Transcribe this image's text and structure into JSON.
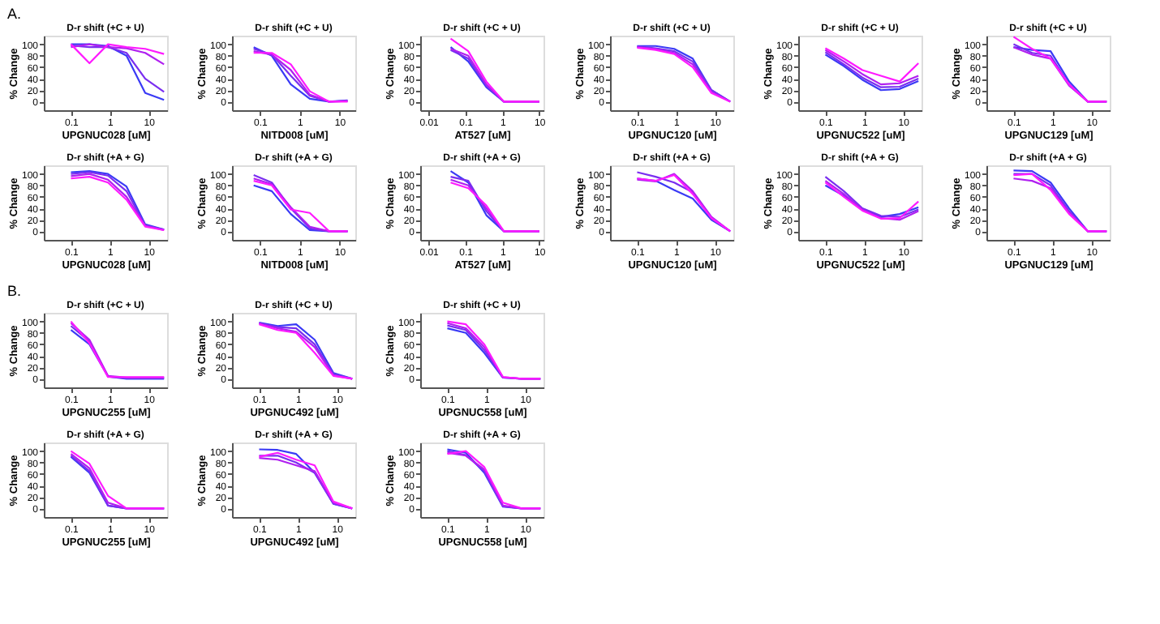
{
  "chart_data": [
    {
      "type": "line",
      "title": "D-r shift (+C + U)",
      "xlabel": "UPGNUC028 [uM]",
      "ylabel": "% Change",
      "log": "x",
      "x": [
        0.1,
        0.3,
        0.9,
        2.7,
        8.2,
        25
      ],
      "xlim": [
        0.02,
        30
      ],
      "xticks": [
        0.1,
        1,
        10
      ],
      "ylim": [
        -15,
        115
      ],
      "yticks": [
        0,
        20,
        40,
        60,
        80,
        100
      ],
      "annotations": [
        "A."
      ],
      "series": [
        {
          "color": "#3a3af5",
          "values": [
            100,
            100,
            97,
            80,
            15,
            3
          ]
        },
        {
          "color": "#7a2ef0",
          "values": [
            98,
            95,
            95,
            85,
            40,
            17
          ]
        },
        {
          "color": "#b020f0",
          "values": [
            95,
            100,
            95,
            93,
            85,
            65
          ]
        },
        {
          "color": "#ff1aff",
          "values": [
            100,
            67,
            100,
            95,
            92,
            83
          ]
        }
      ]
    },
    {
      "type": "line",
      "title": "D-r shift (+C + U)",
      "xlabel": "NITD008 [uM]",
      "ylabel": "% Change",
      "log": "x",
      "x": [
        0.07,
        0.2,
        0.6,
        1.8,
        5.5,
        16
      ],
      "xlim": [
        0.02,
        25
      ],
      "xticks": [
        0.1,
        1,
        10
      ],
      "ylim": [
        -15,
        115
      ],
      "yticks": [
        0,
        20,
        40,
        60,
        80,
        100
      ],
      "series": [
        {
          "color": "#3a3af5",
          "values": [
            95,
            80,
            30,
            5,
            0,
            2
          ]
        },
        {
          "color": "#7a2ef0",
          "values": [
            92,
            82,
            45,
            10,
            0,
            1
          ]
        },
        {
          "color": "#b020f0",
          "values": [
            88,
            82,
            55,
            12,
            0,
            1
          ]
        },
        {
          "color": "#ff1aff",
          "values": [
            85,
            85,
            65,
            18,
            0,
            0
          ]
        }
      ]
    },
    {
      "type": "line",
      "title": "D-r shift (+C + U)",
      "xlabel": "AT527 [uM]",
      "ylabel": "% Change",
      "log": "x",
      "x": [
        0.04,
        0.12,
        0.37,
        1.1,
        3.3,
        10
      ],
      "xlim": [
        0.006,
        13
      ],
      "xticks": [
        0.01,
        0.1,
        1,
        10
      ],
      "ylim": [
        -15,
        115
      ],
      "yticks": [
        0,
        20,
        40,
        60,
        80,
        100
      ],
      "series": [
        {
          "color": "#3a3af5",
          "values": [
            95,
            70,
            25,
            0,
            0,
            0
          ]
        },
        {
          "color": "#7a2ef0",
          "values": [
            90,
            75,
            28,
            0,
            0,
            0
          ]
        },
        {
          "color": "#b020f0",
          "values": [
            92,
            80,
            30,
            0,
            0,
            0
          ]
        },
        {
          "color": "#ff1aff",
          "values": [
            110,
            88,
            35,
            0,
            0,
            0
          ]
        }
      ]
    },
    {
      "type": "line",
      "title": "D-r shift (+C + U)",
      "xlabel": "UPGNUC120 [uM]",
      "ylabel": "% Change",
      "log": "x",
      "x": [
        0.1,
        0.3,
        0.9,
        2.7,
        8.2,
        25
      ],
      "xlim": [
        0.02,
        30
      ],
      "xticks": [
        0.1,
        1,
        10
      ],
      "ylim": [
        -15,
        115
      ],
      "yticks": [
        0,
        20,
        40,
        60,
        80,
        100
      ],
      "series": [
        {
          "color": "#3a3af5",
          "values": [
            97,
            97,
            92,
            75,
            20,
            0
          ]
        },
        {
          "color": "#7a2ef0",
          "values": [
            96,
            93,
            88,
            70,
            20,
            0
          ]
        },
        {
          "color": "#b020f0",
          "values": [
            95,
            92,
            85,
            65,
            17,
            0
          ]
        },
        {
          "color": "#ff1aff",
          "values": [
            94,
            90,
            83,
            60,
            15,
            0
          ]
        }
      ]
    },
    {
      "type": "line",
      "title": "D-r shift (+C + U)",
      "xlabel": "UPGNUC522 [uM]",
      "ylabel": "% Change",
      "log": "x",
      "x": [
        0.1,
        0.3,
        0.9,
        2.7,
        8.2,
        25
      ],
      "xlim": [
        0.02,
        30
      ],
      "xticks": [
        0.1,
        1,
        10
      ],
      "ylim": [
        -15,
        115
      ],
      "yticks": [
        0,
        20,
        40,
        60,
        80,
        100
      ],
      "series": [
        {
          "color": "#3a3af5",
          "values": [
            82,
            62,
            38,
            20,
            22,
            36
          ]
        },
        {
          "color": "#7a2ef0",
          "values": [
            86,
            65,
            42,
            25,
            26,
            40
          ]
        },
        {
          "color": "#b020f0",
          "values": [
            90,
            70,
            48,
            30,
            32,
            45
          ]
        },
        {
          "color": "#ff1aff",
          "values": [
            93,
            75,
            55,
            45,
            35,
            67
          ]
        }
      ]
    },
    {
      "type": "line",
      "title": "D-r shift (+C + U)",
      "xlabel": "UPGNUC129 [uM]",
      "ylabel": "% Change",
      "log": "x",
      "x": [
        0.1,
        0.3,
        0.9,
        2.7,
        8.2,
        25
      ],
      "xlim": [
        0.02,
        30
      ],
      "xticks": [
        0.1,
        1,
        10
      ],
      "ylim": [
        -15,
        115
      ],
      "yticks": [
        0,
        20,
        40,
        60,
        80,
        100
      ],
      "series": [
        {
          "color": "#3a3af5",
          "values": [
            95,
            90,
            88,
            35,
            0,
            0
          ]
        },
        {
          "color": "#7a2ef0",
          "values": [
            100,
            85,
            80,
            30,
            0,
            0
          ]
        },
        {
          "color": "#b020f0",
          "values": [
            95,
            82,
            75,
            28,
            0,
            0
          ]
        },
        {
          "color": "#ff1aff",
          "values": [
            113,
            92,
            75,
            30,
            0,
            0
          ]
        }
      ]
    },
    {
      "type": "line",
      "title": "D-r shift (+A + G)",
      "xlabel": "UPGNUC028 [uM]",
      "ylabel": "% Change",
      "log": "x",
      "x": [
        0.1,
        0.3,
        0.9,
        2.7,
        8.2,
        25
      ],
      "xlim": [
        0.02,
        30
      ],
      "xticks": [
        0.1,
        1,
        10
      ],
      "ylim": [
        -15,
        115
      ],
      "yticks": [
        0,
        20,
        40,
        60,
        80,
        100
      ],
      "series": [
        {
          "color": "#3a3af5",
          "values": [
            103,
            105,
            100,
            78,
            12,
            3
          ]
        },
        {
          "color": "#7a2ef0",
          "values": [
            100,
            103,
            97,
            70,
            10,
            3
          ]
        },
        {
          "color": "#b020f0",
          "values": [
            96,
            100,
            90,
            60,
            10,
            2
          ]
        },
        {
          "color": "#ff1aff",
          "values": [
            92,
            95,
            85,
            55,
            8,
            2
          ]
        }
      ]
    },
    {
      "type": "line",
      "title": "D-r shift (+A + G)",
      "xlabel": "NITD008 [uM]",
      "ylabel": "% Change",
      "log": "x",
      "x": [
        0.07,
        0.2,
        0.6,
        1.8,
        5.5,
        16
      ],
      "xlim": [
        0.02,
        25
      ],
      "xticks": [
        0.1,
        1,
        10
      ],
      "ylim": [
        -15,
        115
      ],
      "yticks": [
        0,
        20,
        40,
        60,
        80,
        100
      ],
      "series": [
        {
          "color": "#3a3af5",
          "values": [
            80,
            70,
            30,
            2,
            0,
            0
          ]
        },
        {
          "color": "#7a2ef0",
          "values": [
            98,
            85,
            40,
            5,
            0,
            0
          ]
        },
        {
          "color": "#b020f0",
          "values": [
            92,
            82,
            42,
            8,
            0,
            0
          ]
        },
        {
          "color": "#ff1aff",
          "values": [
            88,
            80,
            38,
            32,
            0,
            0
          ]
        }
      ]
    },
    {
      "type": "line",
      "title": "D-r shift (+A + G)",
      "xlabel": "AT527 [uM]",
      "ylabel": "% Change",
      "log": "x",
      "x": [
        0.04,
        0.12,
        0.37,
        1.1,
        3.3,
        10
      ],
      "xlim": [
        0.006,
        13
      ],
      "xticks": [
        0.01,
        0.1,
        1,
        10
      ],
      "ylim": [
        -15,
        115
      ],
      "yticks": [
        0,
        20,
        40,
        60,
        80,
        100
      ],
      "series": [
        {
          "color": "#3a3af5",
          "values": [
            105,
            85,
            28,
            0,
            0,
            0
          ]
        },
        {
          "color": "#7a2ef0",
          "values": [
            95,
            88,
            35,
            0,
            0,
            0
          ]
        },
        {
          "color": "#b020f0",
          "values": [
            90,
            80,
            40,
            0,
            0,
            0
          ]
        },
        {
          "color": "#ff1aff",
          "values": [
            85,
            75,
            45,
            0,
            0,
            0
          ]
        }
      ]
    },
    {
      "type": "line",
      "title": "D-r shift (+A + G)",
      "xlabel": "UPGNUC120 [uM]",
      "ylabel": "% Change",
      "log": "x",
      "x": [
        0.1,
        0.3,
        0.9,
        2.7,
        8.2,
        25
      ],
      "xlim": [
        0.02,
        30
      ],
      "xticks": [
        0.1,
        1,
        10
      ],
      "ylim": [
        -15,
        115
      ],
      "yticks": [
        0,
        20,
        40,
        60,
        80,
        100
      ],
      "series": [
        {
          "color": "#3a3af5",
          "values": [
            92,
            88,
            72,
            57,
            20,
            0
          ]
        },
        {
          "color": "#7a2ef0",
          "values": [
            103,
            95,
            85,
            68,
            22,
            0
          ]
        },
        {
          "color": "#b020f0",
          "values": [
            90,
            87,
            100,
            70,
            25,
            0
          ]
        },
        {
          "color": "#ff1aff",
          "values": [
            92,
            88,
            98,
            65,
            23,
            0
          ]
        }
      ]
    },
    {
      "type": "line",
      "title": "D-r shift (+A + G)",
      "xlabel": "UPGNUC522 [uM]",
      "ylabel": "% Change",
      "log": "x",
      "x": [
        0.1,
        0.3,
        0.9,
        2.7,
        8.2,
        25
      ],
      "xlim": [
        0.02,
        30
      ],
      "xticks": [
        0.1,
        1,
        10
      ],
      "ylim": [
        -15,
        115
      ],
      "yticks": [
        0,
        20,
        40,
        60,
        80,
        100
      ],
      "series": [
        {
          "color": "#3a3af5",
          "values": [
            80,
            62,
            38,
            25,
            30,
            42
          ]
        },
        {
          "color": "#7a2ef0",
          "values": [
            95,
            70,
            40,
            27,
            25,
            38
          ]
        },
        {
          "color": "#b020f0",
          "values": [
            88,
            65,
            38,
            23,
            20,
            35
          ]
        },
        {
          "color": "#ff1aff",
          "values": [
            85,
            60,
            36,
            22,
            23,
            52
          ]
        }
      ]
    },
    {
      "type": "line",
      "title": "D-r shift (+A + G)",
      "xlabel": "UPGNUC129 [uM]",
      "ylabel": "% Change",
      "log": "x",
      "x": [
        0.1,
        0.3,
        0.9,
        2.7,
        8.2,
        25
      ],
      "xlim": [
        0.02,
        30
      ],
      "xticks": [
        0.1,
        1,
        10
      ],
      "ylim": [
        -15,
        115
      ],
      "yticks": [
        0,
        20,
        40,
        60,
        80,
        100
      ],
      "series": [
        {
          "color": "#3a3af5",
          "values": [
            106,
            105,
            85,
            40,
            0,
            0
          ]
        },
        {
          "color": "#7a2ef0",
          "values": [
            100,
            100,
            80,
            35,
            0,
            0
          ]
        },
        {
          "color": "#b020f0",
          "values": [
            92,
            88,
            75,
            33,
            0,
            0
          ]
        },
        {
          "color": "#ff1aff",
          "values": [
            98,
            100,
            72,
            30,
            0,
            0
          ]
        }
      ]
    },
    {
      "type": "line",
      "title": "D-r shift (+C + U)",
      "xlabel": "UPGNUC255 [uM]",
      "ylabel": "% Change",
      "log": "x",
      "x": [
        0.1,
        0.3,
        0.9,
        2.7,
        8.2,
        25
      ],
      "xlim": [
        0.02,
        30
      ],
      "xticks": [
        0.1,
        1,
        10
      ],
      "ylim": [
        -15,
        115
      ],
      "yticks": [
        0,
        20,
        40,
        60,
        80,
        100
      ],
      "annotations": [
        "B."
      ],
      "series": [
        {
          "color": "#3a3af5",
          "values": [
            85,
            60,
            4,
            0,
            0,
            0
          ]
        },
        {
          "color": "#7a2ef0",
          "values": [
            92,
            65,
            4,
            1,
            1,
            1
          ]
        },
        {
          "color": "#b020f0",
          "values": [
            97,
            68,
            5,
            2,
            2,
            2
          ]
        },
        {
          "color": "#ff1aff",
          "values": [
            100,
            62,
            3,
            3,
            3,
            3
          ]
        }
      ]
    },
    {
      "type": "line",
      "title": "D-r shift (+C + U)",
      "xlabel": "UPGNUC492 [uM]",
      "ylabel": "% Change",
      "log": "x",
      "x": [
        0.1,
        0.3,
        0.9,
        2.7,
        8.2,
        25
      ],
      "xlim": [
        0.02,
        30
      ],
      "xticks": [
        0.1,
        1,
        10
      ],
      "ylim": [
        -15,
        115
      ],
      "yticks": [
        0,
        20,
        40,
        60,
        80,
        100
      ],
      "series": [
        {
          "color": "#3a3af5",
          "values": [
            98,
            92,
            95,
            68,
            10,
            0
          ]
        },
        {
          "color": "#7a2ef0",
          "values": [
            96,
            90,
            88,
            60,
            8,
            0
          ]
        },
        {
          "color": "#b020f0",
          "values": [
            97,
            88,
            82,
            55,
            6,
            0
          ]
        },
        {
          "color": "#ff1aff",
          "values": [
            95,
            85,
            80,
            45,
            5,
            0
          ]
        }
      ]
    },
    {
      "type": "line",
      "title": "D-r shift (+C + U)",
      "xlabel": "UPGNUC558 [uM]",
      "ylabel": "% Change",
      "log": "x",
      "x": [
        0.1,
        0.3,
        0.9,
        2.7,
        8.2,
        25
      ],
      "xlim": [
        0.02,
        30
      ],
      "xticks": [
        0.1,
        1,
        10
      ],
      "ylim": [
        -15,
        115
      ],
      "yticks": [
        0,
        20,
        40,
        60,
        80,
        100
      ],
      "series": [
        {
          "color": "#3a3af5",
          "values": [
            88,
            80,
            45,
            2,
            0,
            0
          ]
        },
        {
          "color": "#7a2ef0",
          "values": [
            93,
            85,
            50,
            2,
            0,
            0
          ]
        },
        {
          "color": "#b020f0",
          "values": [
            97,
            88,
            55,
            3,
            0,
            0
          ]
        },
        {
          "color": "#ff1aff",
          "values": [
            100,
            95,
            60,
            3,
            0,
            0
          ]
        }
      ]
    },
    {
      "type": "line",
      "title": "D-r shift (+A + G)",
      "xlabel": "UPGNUC255 [uM]",
      "ylabel": "% Change",
      "log": "x",
      "x": [
        0.1,
        0.3,
        0.9,
        2.7,
        8.2,
        25
      ],
      "xlim": [
        0.02,
        30
      ],
      "xticks": [
        0.1,
        1,
        10
      ],
      "ylim": [
        -15,
        115
      ],
      "yticks": [
        0,
        20,
        40,
        60,
        80,
        100
      ],
      "series": [
        {
          "color": "#3a3af5",
          "values": [
            90,
            62,
            5,
            0,
            0,
            0
          ]
        },
        {
          "color": "#7a2ef0",
          "values": [
            92,
            65,
            5,
            0,
            0,
            0
          ]
        },
        {
          "color": "#b020f0",
          "values": [
            95,
            70,
            10,
            0,
            0,
            0
          ]
        },
        {
          "color": "#ff1aff",
          "values": [
            100,
            78,
            22,
            0,
            0,
            0
          ]
        }
      ]
    },
    {
      "type": "line",
      "title": "D-r shift (+A + G)",
      "xlabel": "UPGNUC492 [uM]",
      "ylabel": "% Change",
      "log": "x",
      "x": [
        0.1,
        0.3,
        0.9,
        2.7,
        8.2,
        25
      ],
      "xlim": [
        0.02,
        30
      ],
      "xticks": [
        0.1,
        1,
        10
      ],
      "ylim": [
        -15,
        115
      ],
      "yticks": [
        0,
        20,
        40,
        60,
        80,
        100
      ],
      "series": [
        {
          "color": "#3a3af5",
          "values": [
            103,
            102,
            95,
            62,
            8,
            0
          ]
        },
        {
          "color": "#7a2ef0",
          "values": [
            92,
            92,
            80,
            62,
            8,
            0
          ]
        },
        {
          "color": "#b020f0",
          "values": [
            88,
            85,
            75,
            65,
            10,
            0
          ]
        },
        {
          "color": "#ff1aff",
          "values": [
            90,
            97,
            85,
            75,
            12,
            0
          ]
        }
      ]
    },
    {
      "type": "line",
      "title": "D-r shift (+A + G)",
      "xlabel": "UPGNUC558 [uM]",
      "ylabel": "% Change",
      "log": "x",
      "x": [
        0.1,
        0.3,
        0.9,
        2.7,
        8.2,
        25
      ],
      "xlim": [
        0.02,
        30
      ],
      "xticks": [
        0.1,
        1,
        10
      ],
      "ylim": [
        -15,
        115
      ],
      "yticks": [
        0,
        20,
        40,
        60,
        80,
        100
      ],
      "series": [
        {
          "color": "#3a3af5",
          "values": [
            103,
            97,
            62,
            3,
            0,
            0
          ]
        },
        {
          "color": "#7a2ef0",
          "values": [
            100,
            93,
            65,
            4,
            0,
            0
          ]
        },
        {
          "color": "#b020f0",
          "values": [
            97,
            92,
            68,
            5,
            0,
            0
          ]
        },
        {
          "color": "#ff1aff",
          "values": [
            95,
            100,
            72,
            10,
            0,
            0
          ]
        }
      ]
    }
  ]
}
